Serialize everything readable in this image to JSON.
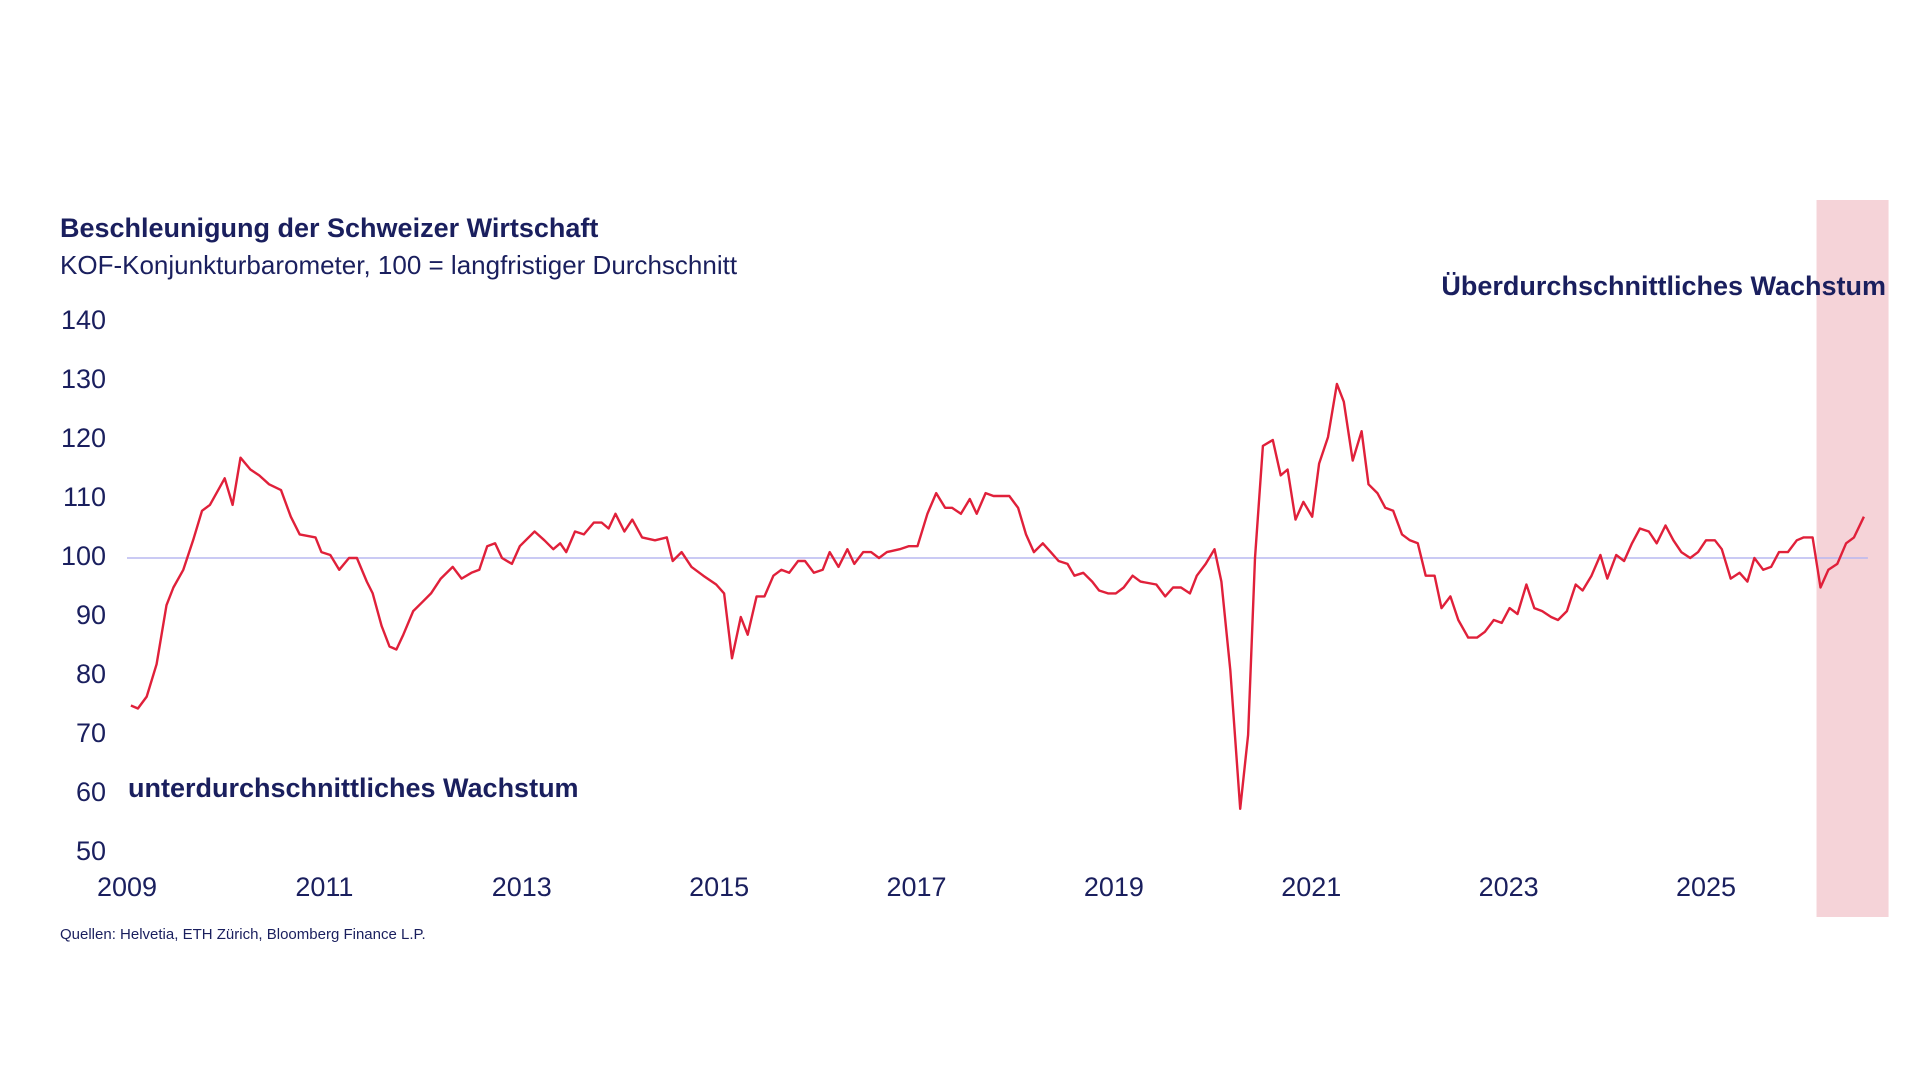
{
  "chart_data": {
    "type": "line",
    "title": "Beschleunigung der Schweizer Wirtschaft",
    "subtitle": "KOF-Konjunkturbarometer, 100 = langfristiger Durchschnitt",
    "annotations": [
      "Überdurchschnittliches Wachstum",
      "unterdurchschnittliches Wachstum"
    ],
    "source": "Quellen: Helvetia, ETH Zürich, Bloomberg Finance L.P.",
    "x": [
      2009.04,
      2009.11,
      2009.2,
      2009.3,
      2009.4,
      2009.47,
      2009.57,
      2009.67,
      2009.76,
      2009.84,
      2009.94,
      2009.99,
      2010.07,
      2010.15,
      2010.25,
      2010.34,
      2010.44,
      2010.56,
      2010.66,
      2010.75,
      2010.91,
      2010.97,
      2011.06,
      2011.15,
      2011.25,
      2011.33,
      2011.43,
      2011.49,
      2011.58,
      2011.66,
      2011.73,
      2011.8,
      2011.9,
      2011.99,
      2012.08,
      2012.18,
      2012.3,
      2012.39,
      2012.49,
      2012.57,
      2012.65,
      2012.73,
      2012.8,
      2012.9,
      2012.98,
      2013.13,
      2013.23,
      2013.32,
      2013.39,
      2013.45,
      2013.54,
      2013.63,
      2013.73,
      2013.81,
      2013.88,
      2013.95,
      2014.04,
      2014.12,
      2014.22,
      2014.35,
      2014.47,
      2014.53,
      2014.62,
      2014.72,
      2014.84,
      2014.97,
      2015.05,
      2015.13,
      2015.22,
      2015.29,
      2015.38,
      2015.46,
      2015.55,
      2015.63,
      2015.71,
      2015.8,
      2015.87,
      2015.96,
      2016.05,
      2016.12,
      2016.21,
      2016.3,
      2016.37,
      2016.46,
      2016.54,
      2016.62,
      2016.7,
      2016.83,
      2016.92,
      2017.01,
      2017.11,
      2017.2,
      2017.29,
      2017.36,
      2017.45,
      2017.54,
      2017.61,
      2017.7,
      2017.78,
      2017.94,
      2018.03,
      2018.11,
      2018.19,
      2018.28,
      2018.36,
      2018.44,
      2018.53,
      2018.6,
      2018.69,
      2018.78,
      2018.85,
      2018.94,
      2019.02,
      2019.1,
      2019.19,
      2019.27,
      2019.43,
      2019.52,
      2019.6,
      2019.68,
      2019.77,
      2019.84,
      2019.93,
      2020.02,
      2020.09,
      2020.18,
      2020.28,
      2020.36,
      2020.43,
      2020.51,
      2020.61,
      2020.69,
      2020.76,
      2020.84,
      2020.92,
      2021.01,
      2021.08,
      2021.17,
      2021.26,
      2021.33,
      2021.42,
      2021.51,
      2021.58,
      2021.67,
      2021.75,
      2021.83,
      2021.92,
      2022.0,
      2022.08,
      2022.16,
      2022.25,
      2022.32,
      2022.41,
      2022.49,
      2022.59,
      2022.68,
      2022.76,
      2022.85,
      2022.93,
      2023.01,
      2023.09,
      2023.18,
      2023.26,
      2023.34,
      2023.43,
      2023.5,
      2023.59,
      2023.68,
      2023.75,
      2023.84,
      2023.93,
      2024.0,
      2024.09,
      2024.17,
      2024.25,
      2024.33,
      2024.42,
      2024.5,
      2024.59,
      2024.67,
      2024.75,
      2024.84,
      2024.92,
      2025.0,
      2025.09,
      2025.16,
      2025.25,
      2025.34,
      2025.42,
      2025.49,
      2025.58,
      2025.66,
      2025.74,
      2025.83,
      2025.92,
      2025.99,
      2026.08,
      2026.16,
      2026.24,
      2026.33,
      2026.42,
      2026.5,
      2026.6
    ],
    "series": [
      {
        "color": "#e0203a",
        "values": [
          75,
          74.5,
          76.5,
          82,
          92,
          95,
          98,
          103,
          108,
          109,
          112,
          113.5,
          109,
          117,
          115,
          114,
          112.5,
          111.5,
          107,
          104,
          103.5,
          101,
          100.5,
          98,
          100,
          100,
          96,
          94,
          88.5,
          85,
          84.5,
          87,
          91,
          92.5,
          94,
          96.5,
          98.5,
          96.5,
          97.5,
          98,
          102,
          102.5,
          100,
          99,
          102,
          104.5,
          103,
          101.5,
          102.5,
          101,
          104.5,
          104,
          106,
          106,
          105,
          107.5,
          104.5,
          106.5,
          103.5,
          103,
          103.5,
          99.5,
          101,
          98.5,
          97,
          95.5,
          94,
          83,
          90,
          87,
          93.5,
          93.5,
          97,
          98,
          97.5,
          99.5,
          99.5,
          97.5,
          98,
          101,
          98.5,
          101.5,
          99,
          101,
          101,
          100,
          101,
          101.5,
          102,
          102,
          107.5,
          111,
          108.5,
          108.5,
          107.5,
          110,
          107.5,
          111,
          110.5,
          110.5,
          108.5,
          104,
          101,
          102.5,
          101,
          99.5,
          99,
          97,
          97.5,
          96,
          94.5,
          94,
          94,
          95,
          97,
          96,
          95.5,
          93.5,
          95,
          95,
          94,
          97,
          99,
          101.5,
          96,
          81,
          57.5,
          70,
          100,
          119,
          120,
          114,
          115,
          106.5,
          109.5,
          107,
          116,
          120.5,
          129.5,
          126.5,
          116.5,
          121.5,
          112.5,
          111,
          108.5,
          108,
          104,
          103,
          102.5,
          97,
          97,
          91.5,
          93.5,
          89.5,
          86.5,
          86.5,
          87.5,
          89.5,
          89,
          91.5,
          90.5,
          95.5,
          91.5,
          91,
          90,
          89.5,
          91,
          95.5,
          94.5,
          97,
          100.5,
          96.5,
          100.5,
          99.5,
          102.5,
          105,
          104.5,
          102.5,
          105.5,
          103,
          101,
          100,
          101,
          103,
          103,
          101.5,
          96.5,
          97.5,
          96,
          100,
          98,
          98.5,
          101,
          101,
          103,
          103.5,
          103.5,
          95,
          98,
          99,
          102.5,
          103.5,
          107
        ]
      }
    ],
    "reference_line": 100,
    "highlight": [
      2026.12,
      2026.85
    ],
    "xlim": [
      2009,
      2026.85
    ],
    "xticks": [
      2009,
      2011,
      2013,
      2015,
      2017,
      2019,
      2021,
      2023,
      2025
    ],
    "ylim": [
      50,
      140
    ],
    "yticks": [
      50,
      60,
      70,
      80,
      90,
      100,
      110,
      120,
      130,
      140
    ],
    "grid": false
  }
}
